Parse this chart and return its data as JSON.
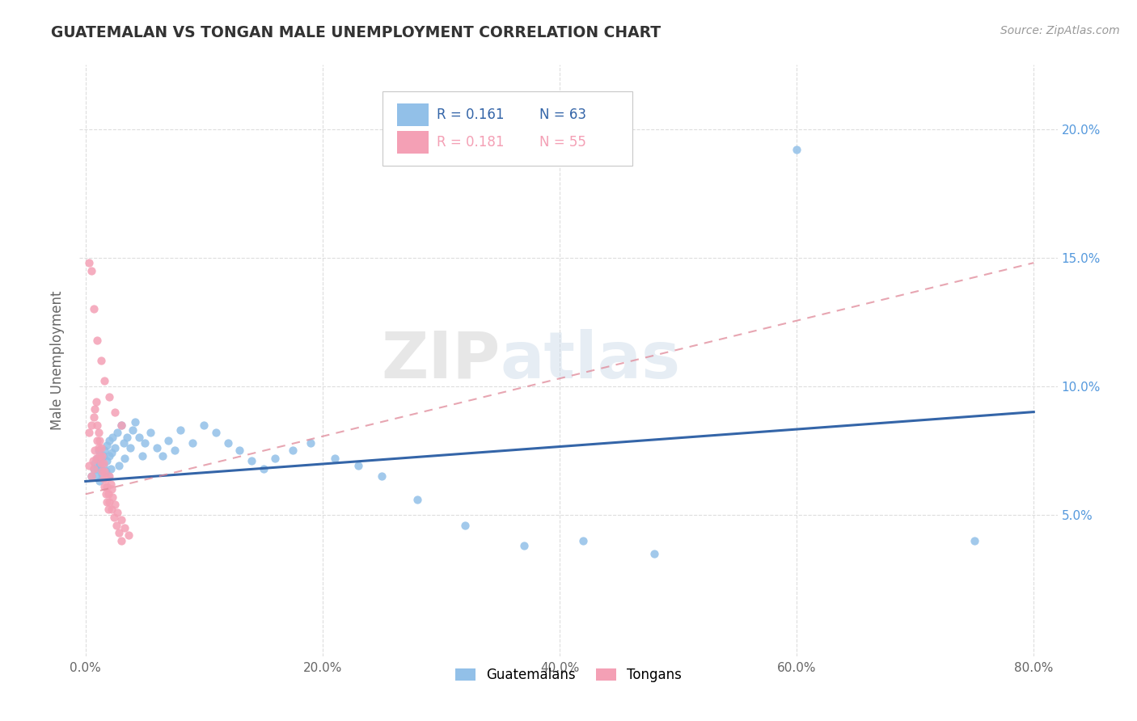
{
  "title": "GUATEMALAN VS TONGAN MALE UNEMPLOYMENT CORRELATION CHART",
  "source_text": "Source: ZipAtlas.com",
  "watermark_zip": "ZIP",
  "watermark_atlas": "atlas",
  "xlabel": "",
  "ylabel": "Male Unemployment",
  "xlim": [
    -0.005,
    0.82
  ],
  "ylim": [
    -0.005,
    0.225
  ],
  "xticks": [
    0.0,
    0.2,
    0.4,
    0.6,
    0.8
  ],
  "xticklabels": [
    "0.0%",
    "20.0%",
    "40.0%",
    "60.0%",
    "80.0%"
  ],
  "yticks": [
    0.05,
    0.1,
    0.15,
    0.2
  ],
  "yticklabels": [
    "5.0%",
    "10.0%",
    "15.0%",
    "20.0%"
  ],
  "guatemalan_color": "#92C0E8",
  "tongan_color": "#F4A0B5",
  "guatemalan_line_color": "#3465A8",
  "tongan_line_color": "#E08898",
  "legend_label1": "R = 0.161",
  "legend_label2": "N = 63",
  "legend_label3": "R = 0.181",
  "legend_label4": "N = 55",
  "guatemalan_trend_x": [
    0.0,
    0.8
  ],
  "guatemalan_trend_y": [
    0.063,
    0.09
  ],
  "tongan_trend_x": [
    0.0,
    0.8
  ],
  "tongan_trend_y": [
    0.058,
    0.148
  ],
  "grid_color": "#dddddd",
  "tick_color": "#666666",
  "title_color": "#333333",
  "ylabel_color": "#666666",
  "right_ytick_color": "#5599dd",
  "guatemalan_scatter_x": [
    0.005,
    0.007,
    0.008,
    0.009,
    0.01,
    0.01,
    0.011,
    0.012,
    0.012,
    0.013,
    0.013,
    0.014,
    0.015,
    0.015,
    0.016,
    0.017,
    0.018,
    0.018,
    0.019,
    0.02,
    0.02,
    0.021,
    0.022,
    0.023,
    0.025,
    0.027,
    0.028,
    0.03,
    0.032,
    0.033,
    0.035,
    0.038,
    0.04,
    0.042,
    0.045,
    0.048,
    0.05,
    0.055,
    0.06,
    0.065,
    0.07,
    0.075,
    0.08,
    0.09,
    0.1,
    0.11,
    0.12,
    0.13,
    0.14,
    0.15,
    0.16,
    0.175,
    0.19,
    0.21,
    0.23,
    0.25,
    0.28,
    0.32,
    0.37,
    0.42,
    0.48,
    0.6,
    0.75
  ],
  "guatemalan_scatter_y": [
    0.065,
    0.068,
    0.07,
    0.065,
    0.072,
    0.068,
    0.075,
    0.07,
    0.063,
    0.068,
    0.072,
    0.066,
    0.073,
    0.069,
    0.075,
    0.067,
    0.071,
    0.077,
    0.065,
    0.073,
    0.079,
    0.068,
    0.074,
    0.08,
    0.076,
    0.082,
    0.069,
    0.085,
    0.078,
    0.072,
    0.08,
    0.076,
    0.083,
    0.086,
    0.08,
    0.073,
    0.078,
    0.082,
    0.076,
    0.073,
    0.079,
    0.075,
    0.083,
    0.078,
    0.085,
    0.082,
    0.078,
    0.075,
    0.071,
    0.068,
    0.072,
    0.075,
    0.078,
    0.072,
    0.069,
    0.065,
    0.056,
    0.046,
    0.038,
    0.04,
    0.035,
    0.192,
    0.04
  ],
  "tongan_scatter_x": [
    0.003,
    0.005,
    0.006,
    0.007,
    0.008,
    0.009,
    0.01,
    0.011,
    0.012,
    0.013,
    0.014,
    0.015,
    0.016,
    0.017,
    0.018,
    0.019,
    0.02,
    0.021,
    0.022,
    0.023,
    0.025,
    0.027,
    0.03,
    0.033,
    0.036,
    0.003,
    0.005,
    0.007,
    0.008,
    0.009,
    0.01,
    0.011,
    0.012,
    0.013,
    0.014,
    0.015,
    0.016,
    0.017,
    0.018,
    0.019,
    0.02,
    0.022,
    0.024,
    0.026,
    0.028,
    0.03,
    0.003,
    0.005,
    0.007,
    0.01,
    0.013,
    0.016,
    0.02,
    0.025,
    0.03
  ],
  "tongan_scatter_y": [
    0.069,
    0.065,
    0.071,
    0.068,
    0.075,
    0.072,
    0.079,
    0.076,
    0.073,
    0.07,
    0.067,
    0.064,
    0.061,
    0.058,
    0.055,
    0.052,
    0.065,
    0.062,
    0.06,
    0.057,
    0.054,
    0.051,
    0.048,
    0.045,
    0.042,
    0.082,
    0.085,
    0.088,
    0.091,
    0.094,
    0.085,
    0.082,
    0.079,
    0.076,
    0.073,
    0.07,
    0.067,
    0.064,
    0.061,
    0.058,
    0.055,
    0.052,
    0.049,
    0.046,
    0.043,
    0.04,
    0.148,
    0.145,
    0.13,
    0.118,
    0.11,
    0.102,
    0.096,
    0.09,
    0.085
  ]
}
